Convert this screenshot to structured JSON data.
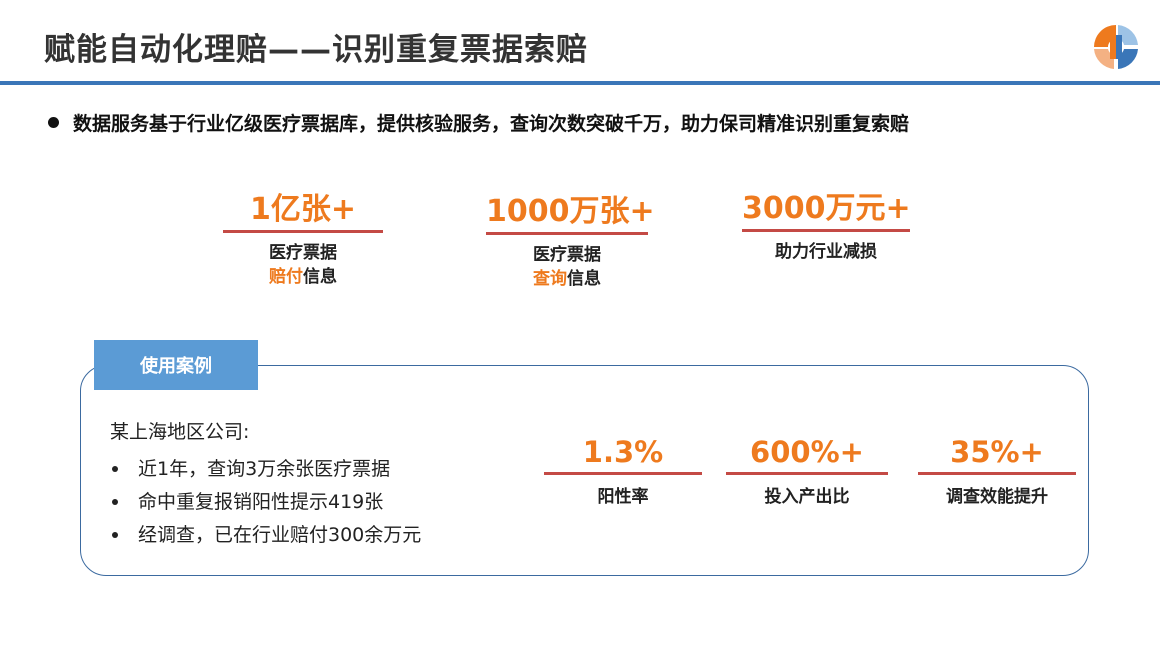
{
  "header": {
    "title": "赋能自动化理赔——识别重复票据索赔",
    "colors": {
      "accent_bar": "#3a76b8",
      "highlight": "#ee7a1e",
      "underline": "#c44a45"
    }
  },
  "logo": {
    "icon": "company-logo-icon",
    "colors": [
      "#ee7a1e",
      "#3a76b8",
      "#f4b183",
      "#9dc3e6"
    ]
  },
  "intro": {
    "text": "数据服务基于行业亿级医疗票据库，提供核验服务，查询次数突破千万，助力保司精准识别重复索赔"
  },
  "stats": [
    {
      "value": "1亿张+",
      "line1": "医疗票据",
      "line2_highlight": "赔付",
      "line2_rest": "信息"
    },
    {
      "value": "1000万张+",
      "line1": "医疗票据",
      "line2_highlight": "查询",
      "line2_rest": "信息"
    },
    {
      "value": "3000万元+",
      "line1": "助力行业减损"
    }
  ],
  "case": {
    "tab_label": "使用案例",
    "company": "某上海地区公司:",
    "items": [
      "近1年，查询3万余张医疗票据",
      "命中重复报销阳性提示419张",
      "经调查，已在行业赔付300余万元"
    ],
    "metrics": [
      {
        "value": "1.3%",
        "label": "阳性率"
      },
      {
        "value": "600%+",
        "label": "投入产出比"
      },
      {
        "value": "35%+",
        "label": "调查效能提升"
      }
    ]
  }
}
